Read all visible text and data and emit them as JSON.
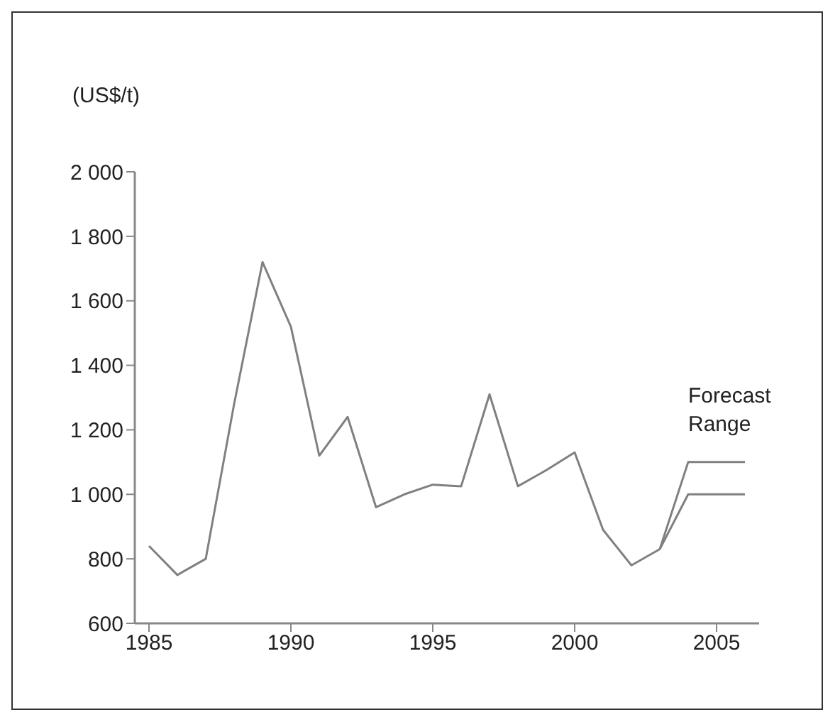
{
  "chart_data": {
    "type": "line",
    "ylabel": "(US$/t)",
    "xlim": [
      1984.5,
      2006.5
    ],
    "xticks": [
      1985,
      1990,
      1995,
      2000,
      2005
    ],
    "ylim": [
      600,
      2000
    ],
    "yticks": [
      {
        "value": 600,
        "label": "600"
      },
      {
        "value": 800,
        "label": "800"
      },
      {
        "value": 1000,
        "label": "1 000"
      },
      {
        "value": 1200,
        "label": "1 200"
      },
      {
        "value": 1400,
        "label": "1 400"
      },
      {
        "value": 1600,
        "label": "1 600"
      },
      {
        "value": 1800,
        "label": "1 800"
      },
      {
        "value": 2000,
        "label": "2 000"
      }
    ],
    "grid": false,
    "legend": false,
    "marker": "none",
    "line_style": "solid",
    "annotations": [
      {
        "text": "Forecast Range",
        "x": 2004,
        "y": 1100
      }
    ],
    "series": [
      {
        "color": "#808080",
        "x": [
          1985,
          1986,
          1987,
          1988,
          1989,
          1990,
          1991,
          1992,
          1993,
          1994,
          1995,
          1996,
          1997,
          1998,
          1999,
          2000,
          2001,
          2002,
          2003
        ],
        "values": [
          840,
          750,
          800,
          1280,
          1720,
          1520,
          1120,
          1240,
          960,
          1000,
          1030,
          1025,
          1310,
          1025,
          1075,
          1130,
          890,
          780,
          830
        ]
      },
      {
        "color": "#808080",
        "x": [
          2003,
          2004,
          2005,
          2006
        ],
        "values": [
          830,
          1100,
          1100,
          1100
        ]
      },
      {
        "color": "#808080",
        "x": [
          2003,
          2004,
          2005,
          2006
        ],
        "values": [
          830,
          1000,
          1000,
          1000
        ]
      }
    ]
  }
}
